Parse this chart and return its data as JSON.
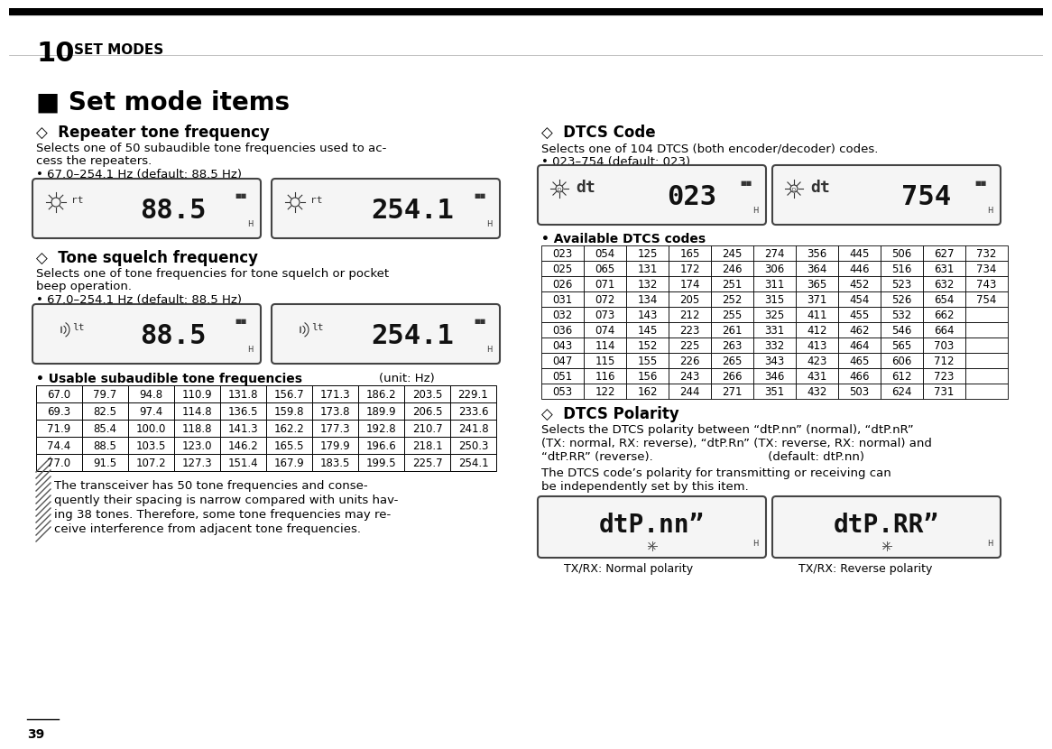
{
  "page_num": "39",
  "top_bar_color": "#000000",
  "title": "■ Set mode items",
  "section1_title": "◇  Repeater tone frequency",
  "section1_body1": "Selects one of 50 subaudible tone frequencies used to ac-",
  "section1_body2": "cess the repeaters.",
  "section1_bullet": "• 67.0–254.1 Hz (default: 88.5 Hz)",
  "section2_title": "◇  Tone squelch frequency",
  "section2_body1": "Selects one of tone frequencies for tone squelch or pocket",
  "section2_body2": "beep operation.",
  "section2_bullet": "• 67.0–254.1 Hz (default: 88.5 Hz)",
  "tone_freq_header": "• Usable subaudible tone frequencies",
  "tone_freq_unit": "(unit: Hz)",
  "tone_freq_table": [
    [
      "67.0",
      "79.7",
      "94.8",
      "110.9",
      "131.8",
      "156.7",
      "171.3",
      "186.2",
      "203.5",
      "229.1"
    ],
    [
      "69.3",
      "82.5",
      "97.4",
      "114.8",
      "136.5",
      "159.8",
      "173.8",
      "189.9",
      "206.5",
      "233.6"
    ],
    [
      "71.9",
      "85.4",
      "100.0",
      "118.8",
      "141.3",
      "162.2",
      "177.3",
      "192.8",
      "210.7",
      "241.8"
    ],
    [
      "74.4",
      "88.5",
      "103.5",
      "123.0",
      "146.2",
      "165.5",
      "179.9",
      "196.6",
      "218.1",
      "250.3"
    ],
    [
      "77.0",
      "91.5",
      "107.2",
      "127.3",
      "151.4",
      "167.9",
      "183.5",
      "199.5",
      "225.7",
      "254.1"
    ]
  ],
  "note_text_lines": [
    "The transceiver has 50 tone frequencies and conse-",
    "quently their spacing is narrow compared with units hav-",
    "ing 38 tones. Therefore, some tone frequencies may re-",
    "ceive interference from adjacent tone frequencies."
  ],
  "section3_title": "◇  DTCS Code",
  "section3_body1": "Selects one of 104 DTCS (both encoder/decoder) codes.",
  "section3_bullet1": "• 023–754 (default: 023)",
  "section3_bullet2": "• Available DTCS codes",
  "dtcs_table": [
    [
      "023",
      "054",
      "125",
      "165",
      "245",
      "274",
      "356",
      "445",
      "506",
      "627",
      "732"
    ],
    [
      "025",
      "065",
      "131",
      "172",
      "246",
      "306",
      "364",
      "446",
      "516",
      "631",
      "734"
    ],
    [
      "026",
      "071",
      "132",
      "174",
      "251",
      "311",
      "365",
      "452",
      "523",
      "632",
      "743"
    ],
    [
      "031",
      "072",
      "134",
      "205",
      "252",
      "315",
      "371",
      "454",
      "526",
      "654",
      "754"
    ],
    [
      "032",
      "073",
      "143",
      "212",
      "255",
      "325",
      "411",
      "455",
      "532",
      "662",
      ""
    ],
    [
      "036",
      "074",
      "145",
      "223",
      "261",
      "331",
      "412",
      "462",
      "546",
      "664",
      ""
    ],
    [
      "043",
      "114",
      "152",
      "225",
      "263",
      "332",
      "413",
      "464",
      "565",
      "703",
      ""
    ],
    [
      "047",
      "115",
      "155",
      "226",
      "265",
      "343",
      "423",
      "465",
      "606",
      "712",
      ""
    ],
    [
      "051",
      "116",
      "156",
      "243",
      "266",
      "346",
      "431",
      "466",
      "612",
      "723",
      ""
    ],
    [
      "053",
      "122",
      "162",
      "244",
      "271",
      "351",
      "432",
      "503",
      "624",
      "731",
      ""
    ]
  ],
  "section4_title": "◇  DTCS Polarity",
  "section4_body_lines": [
    "Selects the DTCS polarity between “dtP.nn” (normal), “dtP.nR”",
    "(TX: normal, RX: reverse), “dtP.Rn” (TX: reverse, RX: normal) and",
    "“dtP.RR” (reverse).                              (default: dtP.nn)"
  ],
  "section4_body2_lines": [
    "The DTCS code’s polarity for transmitting or receiving can",
    "be independently set by this item."
  ],
  "polarity_label1": "TX/RX: Normal polarity",
  "polarity_label2": "TX/RX: Reverse polarity",
  "bg_color": "#ffffff",
  "text_color": "#000000"
}
